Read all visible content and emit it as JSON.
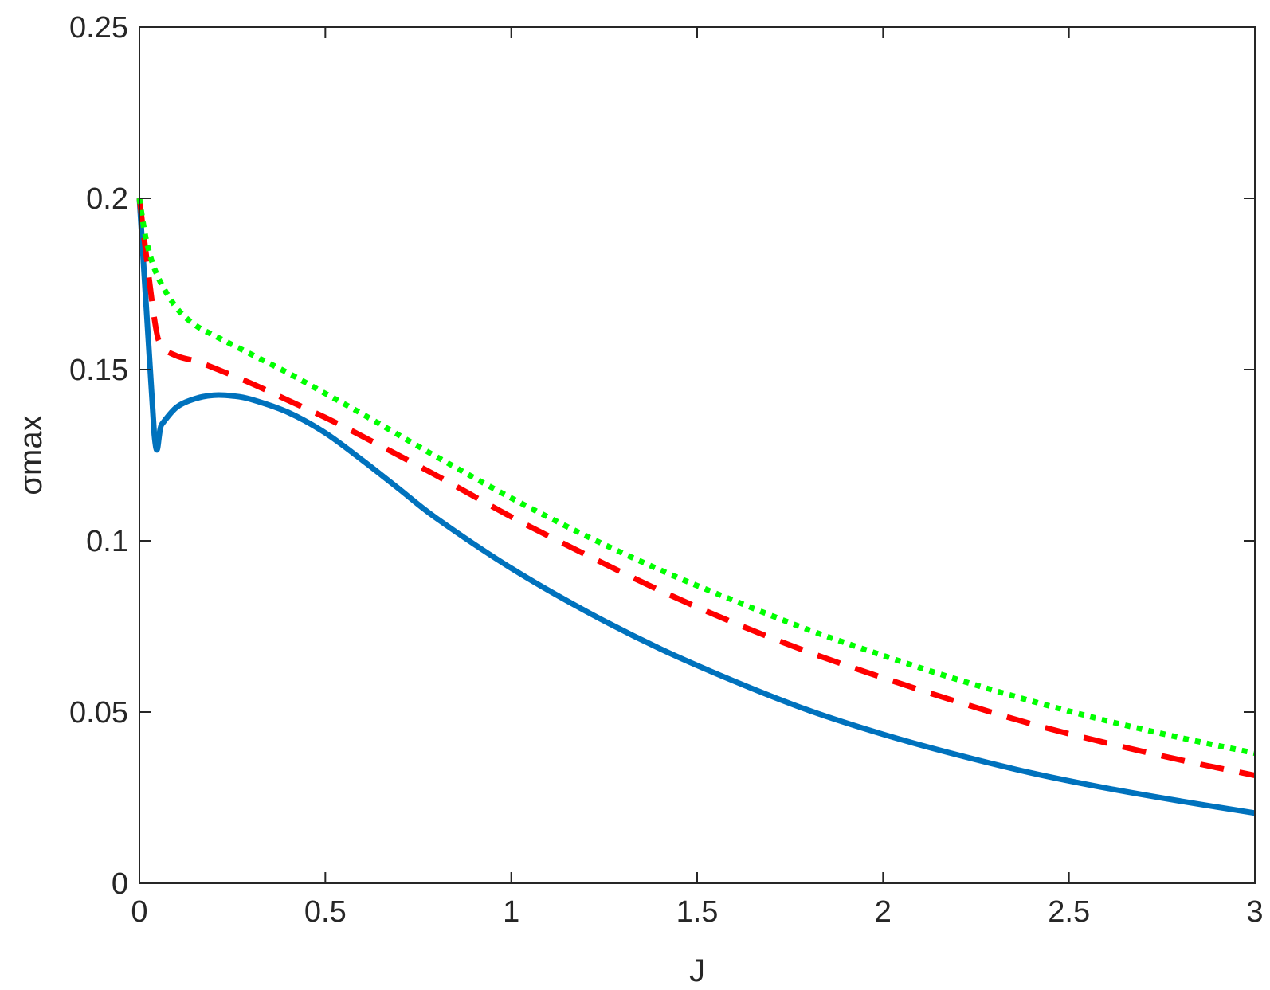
{
  "chart_data": {
    "type": "line",
    "title": "",
    "xlabel": "J",
    "ylabel": "σmax",
    "xlim": [
      0,
      3
    ],
    "ylim": [
      0,
      0.25
    ],
    "xticks": [
      0,
      0.5,
      1,
      1.5,
      2,
      2.5,
      3
    ],
    "xtick_labels": [
      "0",
      "0.5",
      "1",
      "1.5",
      "2",
      "2.5",
      "3"
    ],
    "yticks": [
      0,
      0.05,
      0.1,
      0.15,
      0.2,
      0.25
    ],
    "ytick_labels": [
      "0",
      "0.05",
      "0.1",
      "0.15",
      "0.2",
      "0.25"
    ],
    "grid": false,
    "box": true,
    "series": [
      {
        "style": "solid",
        "color": "#0072BD",
        "x": [
          0,
          0.04,
          0.06,
          0.1,
          0.15,
          0.2,
          0.25,
          0.3,
          0.4,
          0.5,
          0.6,
          0.7,
          0.8,
          1.0,
          1.2,
          1.4,
          1.6,
          1.8,
          2.0,
          2.2,
          2.4,
          2.6,
          2.8,
          3.0
        ],
        "y": [
          0.2,
          0.131,
          0.134,
          0.139,
          0.1415,
          0.1425,
          0.1423,
          0.1413,
          0.1375,
          0.1315,
          0.1235,
          0.115,
          0.1065,
          0.092,
          0.0795,
          0.0685,
          0.059,
          0.0505,
          0.0435,
          0.0375,
          0.0322,
          0.0278,
          0.024,
          0.0205
        ]
      },
      {
        "style": "dashed",
        "color": "#FF0000",
        "x": [
          0,
          0.04,
          0.06,
          0.1,
          0.15,
          0.2,
          0.3,
          0.4,
          0.5,
          0.6,
          0.8,
          1.0,
          1.2,
          1.4,
          1.6,
          1.8,
          2.0,
          2.2,
          2.4,
          2.6,
          2.8,
          3.0
        ],
        "y": [
          0.2,
          0.165,
          0.157,
          0.154,
          0.1525,
          0.1505,
          0.146,
          0.141,
          0.136,
          0.1305,
          0.119,
          0.107,
          0.096,
          0.0855,
          0.076,
          0.0675,
          0.06,
          0.053,
          0.0465,
          0.041,
          0.036,
          0.0315
        ]
      },
      {
        "style": "dotted",
        "color": "#00FF00",
        "x": [
          0,
          0.02,
          0.05,
          0.1,
          0.15,
          0.2,
          0.3,
          0.4,
          0.5,
          0.6,
          0.8,
          1.0,
          1.2,
          1.4,
          1.6,
          1.8,
          2.0,
          2.2,
          2.4,
          2.6,
          2.8,
          3.0
        ],
        "y": [
          0.2,
          0.187,
          0.177,
          0.168,
          0.163,
          0.16,
          0.1545,
          0.149,
          0.143,
          0.137,
          0.1245,
          0.1125,
          0.1015,
          0.0915,
          0.0825,
          0.074,
          0.0665,
          0.0595,
          0.0532,
          0.0475,
          0.0425,
          0.038
        ]
      }
    ]
  }
}
